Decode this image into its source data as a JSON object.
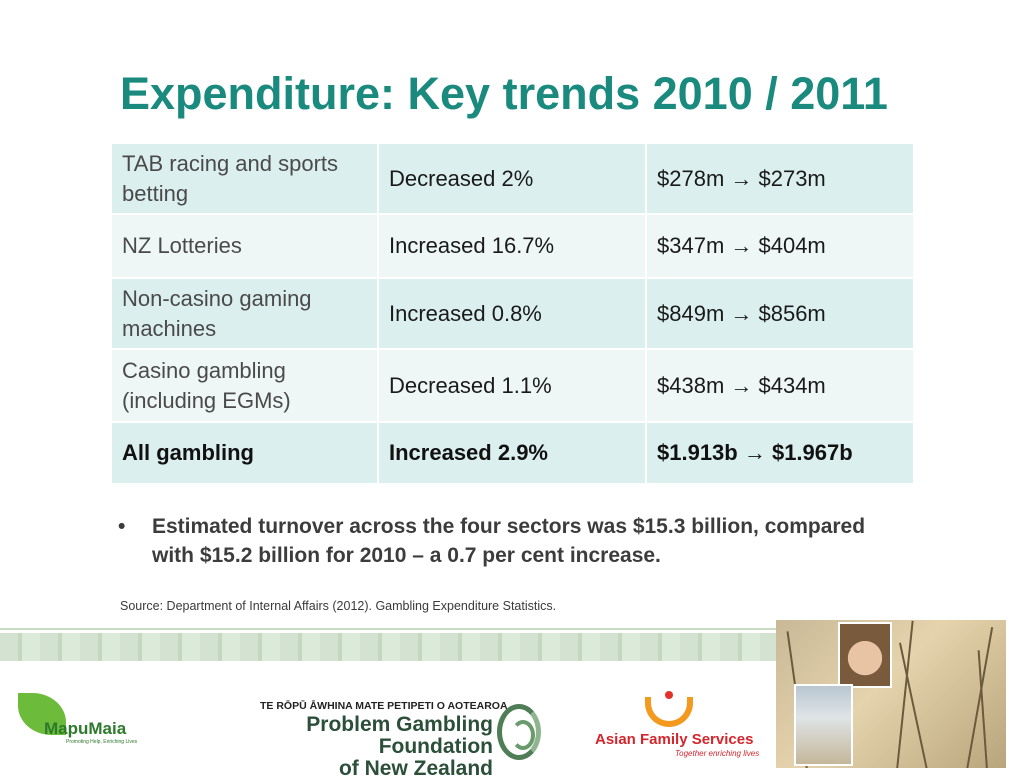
{
  "title": "Expenditure: Key trends 2010 / 2011",
  "table": {
    "rows": [
      {
        "sector": "TAB racing and sports betting",
        "change": "Decreased 2%",
        "values": "$278m → $273m"
      },
      {
        "sector": "NZ Lotteries",
        "change": "Increased 16.7%",
        "values": "$347m → $404m"
      },
      {
        "sector": "Non-casino gaming machines",
        "change": "Increased 0.8%",
        "values": "$849m → $856m"
      },
      {
        "sector": "Casino gambling (including EGMs)",
        "change": "Decreased 1.1%",
        "values": "$438m → $434m"
      },
      {
        "sector": "All gambling",
        "change": "Increased 2.9%",
        "values": "$1.913b → $1.967b"
      }
    ]
  },
  "bullet": {
    "marker": "•",
    "text": "Estimated turnover across the four sectors was $15.3 billion, compared with $15.2 billion for 2010 – a 0.7 per cent increase."
  },
  "source": "Source: Department of Internal Affairs (2012). Gambling Expenditure Statistics.",
  "logos": {
    "mapu_maia": {
      "name": "MapuMaia",
      "tagline": "Promoting Help, Enriching Lives"
    },
    "pgf": {
      "maori": "TE RŌPŪ ĀWHINA MATE PETIPETI O AOTEAROA",
      "line1": "Problem Gambling Foundation",
      "line2": "of New Zealand"
    },
    "afs": {
      "name": "Asian Family Services",
      "tagline": "Together enriching lives"
    }
  },
  "colors": {
    "title": "#1a8a7e",
    "table_dark": "#dcefef",
    "table_light": "#eef7f6",
    "afs_red": "#d3262d",
    "pgf_green": "#2c4f3a"
  }
}
